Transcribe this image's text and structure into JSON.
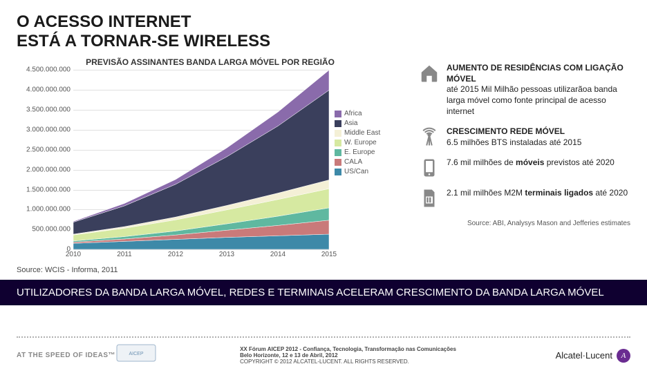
{
  "title_line1": "O ACESSO INTERNET",
  "title_line2": "ESTÁ A TORNAR-SE WIRELESS",
  "chart": {
    "title": "PREVISÃO ASSINANTES BANDA LARGA MÓVEL POR REGIÃO",
    "type": "stacked-area",
    "ylim": [
      0,
      4500000000
    ],
    "ytick_step": 500000000,
    "y_ticks": [
      {
        "v": 0,
        "label": "0"
      },
      {
        "v": 500000000,
        "label": "500.000.000"
      },
      {
        "v": 1000000000,
        "label": "1.000.000.000"
      },
      {
        "v": 1500000000,
        "label": "1.500.000.000"
      },
      {
        "v": 2000000000,
        "label": "2.000.000.000"
      },
      {
        "v": 2500000000,
        "label": "2.500.000.000"
      },
      {
        "v": 3000000000,
        "label": "3.000.000.000"
      },
      {
        "v": 3500000000,
        "label": "3.500.000.000"
      },
      {
        "v": 4000000000,
        "label": "4.000.000.000"
      },
      {
        "v": 4500000000,
        "label": "4.500.000.000"
      }
    ],
    "x_categories": [
      "2010",
      "2011",
      "2012",
      "2013",
      "2014",
      "2015"
    ],
    "series": [
      {
        "name": "Africa",
        "color": "#8a6bab",
        "values": [
          20000000,
          60000000,
          120000000,
          220000000,
          350000000,
          500000000
        ]
      },
      {
        "name": "Asia",
        "color": "#3a3f5c",
        "values": [
          300000000,
          520000000,
          820000000,
          1220000000,
          1680000000,
          2250000000
        ]
      },
      {
        "name": "Middle East",
        "color": "#f4f0d6",
        "values": [
          20000000,
          40000000,
          70000000,
          110000000,
          160000000,
          220000000
        ]
      },
      {
        "name": "W. Europe",
        "color": "#d6e9a1",
        "values": [
          150000000,
          210000000,
          280000000,
          350000000,
          420000000,
          480000000
        ]
      },
      {
        "name": "E. Europe",
        "color": "#5fb8a0",
        "values": [
          30000000,
          60000000,
          100000000,
          160000000,
          230000000,
          310000000
        ]
      },
      {
        "name": "CALA",
        "color": "#c97a7a",
        "values": [
          30000000,
          60000000,
          110000000,
          180000000,
          260000000,
          350000000
        ]
      },
      {
        "name": "US/Can",
        "color": "#3d89a8",
        "values": [
          150000000,
          200000000,
          250000000,
          300000000,
          340000000,
          380000000
        ]
      }
    ],
    "grid_color": "#e0e0e0",
    "axis_font_size": 10
  },
  "source_left": "Source: WCIS - Informa, 2011",
  "features": [
    {
      "icon": "house",
      "title": "AUMENTO DE RESIDÊNCIAS COM LIGAÇÃO MÓVEL",
      "rest": "até 2015 Mil Milhão pessoas utilizarãoa banda larga móvel como fonte principal de acesso internet"
    },
    {
      "icon": "antenna",
      "title": "CRESCIMENTO REDE MÓVEL",
      "rest": "6.5 milhões BTS instaladas até 2015"
    },
    {
      "icon": "phone",
      "rest_before": "7.6 mil milhões de ",
      "bold": "móveis",
      "rest_after": " previstos até 2020"
    },
    {
      "icon": "sim",
      "rest_before": "2.1 mil milhões M2M ",
      "bold": "terminais ligados",
      "rest_after": " até 2020"
    }
  ],
  "source_right": "Source: ABI, Analysys Mason and Jefferies estimates",
  "bottom_bar": "UTILIZADORES DA BANDA LARGA MÓVEL, REDES E TERMINAIS ACELERAM CRESCIMENTO DA BANDA LARGA MÓVEL",
  "footer": {
    "tagline": "AT THE SPEED OF IDEAS™",
    "center_line1": "XX Fórum AICEP 2012 - Confiança, Tecnologia, Transformação nas Comunicações",
    "center_line2": "Belo Horizonte, 12 e 13 de Abril, 2012",
    "center_line3": "COPYRIGHT © 2012 ALCATEL-LUCENT. ALL RIGHTS RESERVED.",
    "brand": "Alcatel·Lucent"
  }
}
